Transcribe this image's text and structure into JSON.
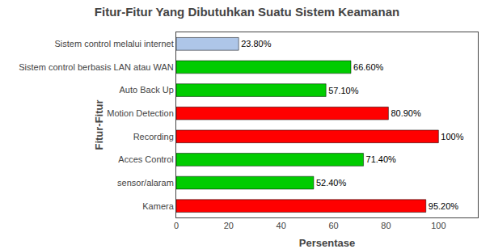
{
  "chart_data": {
    "type": "bar",
    "orientation": "horizontal",
    "title": "Fitur-Fitur Yang Dibutuhkan Suatu Sistem Keamanan",
    "xlabel": "Persentase",
    "ylabel": "Fitur-Fitur",
    "categories": [
      "Kamera",
      "sensor/alaram",
      "Acces Control",
      "Recording",
      "Motion Detection",
      "Auto Back Up",
      "Sistem control berbasis LAN atau WAN",
      "Sistem control melalui internet"
    ],
    "values": [
      95.2,
      52.4,
      71.4,
      100.0,
      80.9,
      57.1,
      66.6,
      23.8
    ],
    "value_labels": [
      "95.20%",
      "52.40%",
      "71.40%",
      "100%",
      "80.90%",
      "57.10%",
      "66.60%",
      "23.80%"
    ],
    "colors": [
      "#ff0000",
      "#00cc00",
      "#00cc00",
      "#ff0000",
      "#ff0000",
      "#00cc00",
      "#00cc00",
      "#aec6e8"
    ],
    "data_labels": true,
    "xlim": [
      0,
      115
    ],
    "xticks": [
      0,
      20,
      40,
      60,
      80,
      100
    ],
    "grid": false
  }
}
